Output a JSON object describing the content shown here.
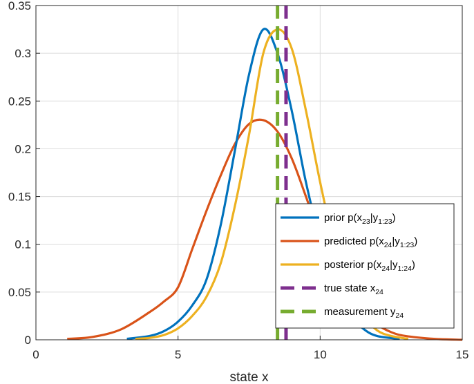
{
  "chart_data": {
    "type": "line",
    "xlabel": "state x",
    "ylabel": "",
    "xlim": [
      0,
      15
    ],
    "ylim": [
      0,
      0.35
    ],
    "grid": true,
    "legend_position": "bottom-right",
    "x_ticks": [
      "0",
      "5",
      "10",
      "15"
    ],
    "y_ticks": [
      "0",
      "0.05",
      "0.1",
      "0.15",
      "0.2",
      "0.25",
      "0.3",
      "0.35"
    ],
    "series": [
      {
        "name": "prior p(x23|y1:23)",
        "legend": {
          "base": "prior p(x",
          "sub1": "23",
          "mid": "|y",
          "sub2": "1:23",
          "end": ")"
        },
        "color": "#0072BD",
        "style": "solid",
        "x": [
          3.2,
          4.0,
          4.5,
          5.0,
          5.5,
          6.0,
          6.5,
          7.0,
          7.5,
          8.0,
          8.5,
          9.0,
          9.5,
          10.0,
          10.5,
          11.0,
          11.5,
          12.0,
          12.8
        ],
        "y": [
          0.001,
          0.004,
          0.009,
          0.019,
          0.036,
          0.063,
          0.12,
          0.198,
          0.278,
          0.325,
          0.3,
          0.24,
          0.165,
          0.105,
          0.06,
          0.028,
          0.012,
          0.004,
          0.001
        ]
      },
      {
        "name": "predicted p(x24|y1:23)",
        "legend": {
          "base": "predicted p(x",
          "sub1": "24",
          "mid": "|y",
          "sub2": "1:23",
          "end": ")"
        },
        "color": "#D95319",
        "style": "solid",
        "x": [
          1.1,
          2.0,
          3.0,
          4.0,
          4.5,
          5.0,
          5.5,
          6.0,
          6.5,
          7.0,
          7.5,
          8.0,
          8.5,
          9.0,
          9.5,
          10.0,
          10.5,
          11.0,
          11.5,
          12.0,
          12.5,
          13.0,
          14.0,
          15.0
        ],
        "y": [
          0.001,
          0.003,
          0.011,
          0.029,
          0.04,
          0.055,
          0.095,
          0.135,
          0.172,
          0.205,
          0.226,
          0.23,
          0.218,
          0.19,
          0.15,
          0.108,
          0.078,
          0.05,
          0.028,
          0.016,
          0.008,
          0.004,
          0.001,
          0.0
        ]
      },
      {
        "name": "posterior p(x24|y1:24)",
        "legend": {
          "base": "posterior p(x",
          "sub1": "24",
          "mid": "|y",
          "sub2": "1:24",
          "end": ")"
        },
        "color": "#EDB120",
        "style": "solid",
        "x": [
          3.5,
          4.0,
          4.5,
          5.0,
          5.5,
          6.0,
          6.5,
          7.0,
          7.5,
          8.0,
          8.5,
          9.0,
          9.5,
          10.0,
          10.5,
          11.0,
          11.5,
          12.0,
          12.5,
          13.1
        ],
        "y": [
          0.001,
          0.002,
          0.005,
          0.012,
          0.025,
          0.045,
          0.08,
          0.14,
          0.215,
          0.3,
          0.325,
          0.305,
          0.24,
          0.165,
          0.1,
          0.056,
          0.026,
          0.01,
          0.004,
          0.001
        ]
      },
      {
        "name": "true state x24",
        "legend": {
          "base": "true state x",
          "sub1": "24",
          "mid": "",
          "sub2": "",
          "end": ""
        },
        "color": "#7E2F8E",
        "style": "dashed",
        "x": [
          8.8,
          8.8
        ],
        "y": [
          0,
          0.35
        ]
      },
      {
        "name": "measurement y24",
        "legend": {
          "base": "measurement y",
          "sub1": "24",
          "mid": "",
          "sub2": "",
          "end": ""
        },
        "color": "#77AC30",
        "style": "dashed",
        "x": [
          8.5,
          8.5
        ],
        "y": [
          0,
          0.35
        ]
      }
    ]
  }
}
